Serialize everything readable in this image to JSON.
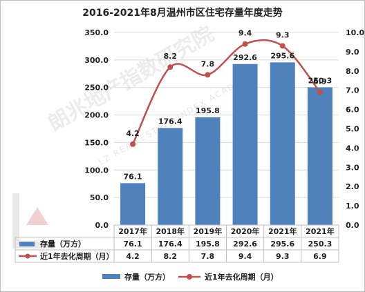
{
  "title": "2016-2021年8月温州市区住宅存量年度走势",
  "watermark": {
    "main": "朗兆地产指数研究院",
    "sub": "LZ REAL ESTATE INDEX ACADEMY"
  },
  "colors": {
    "bar": "#4f81bd",
    "line": "#c0504d",
    "grid": "#d9d9d9",
    "text": "#222222"
  },
  "chart_data": {
    "type": "bar+line",
    "title": "2016-2021年8月温州市区住宅存量年度走势",
    "categories": [
      "2017年",
      "2018年",
      "2019年",
      "2020年",
      "2021年",
      "2021年"
    ],
    "series": [
      {
        "name": "存量（万方）",
        "type": "bar",
        "axis": "left",
        "values": [
          76.1,
          176.4,
          195.8,
          292.6,
          295.6,
          250.3
        ]
      },
      {
        "name": "近1年去化周期（月）",
        "type": "line",
        "axis": "right",
        "values": [
          4.2,
          8.2,
          7.8,
          9.4,
          9.3,
          6.9
        ]
      }
    ],
    "left_axis": {
      "min": 0,
      "max": 350,
      "step": 50,
      "ticks": [
        "0.0",
        "50.0",
        "100.0",
        "150.0",
        "200.0",
        "250.0",
        "300.0",
        "350.0"
      ]
    },
    "right_axis": {
      "min": 0,
      "max": 10,
      "step": 1,
      "ticks": [
        "0.0",
        "1.0",
        "2.0",
        "3.0",
        "4.0",
        "5.0",
        "6.0",
        "7.0",
        "8.0",
        "9.0",
        "10.0"
      ]
    },
    "grid": true,
    "legend_position": "bottom",
    "data_table": {
      "rows": [
        {
          "label": "存量（万方）",
          "values": [
            "76.1",
            "176.4",
            "195.8",
            "292.6",
            "295.6",
            "250.3"
          ]
        },
        {
          "label": "近1年去化周期（月）",
          "values": [
            "4.2",
            "8.2",
            "7.8",
            "9.4",
            "9.3",
            "6.9"
          ]
        }
      ]
    },
    "legend": [
      "存量（万方）",
      "近1年去化周期（月）"
    ]
  }
}
